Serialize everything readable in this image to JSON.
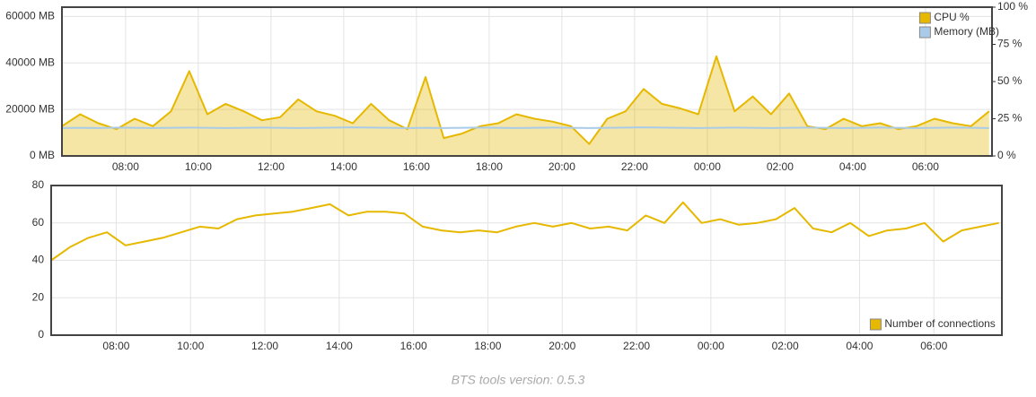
{
  "chart_data": [
    {
      "type": "line",
      "x": [
        6.25,
        6.75,
        7.25,
        7.75,
        8.25,
        8.75,
        9.25,
        9.75,
        10.25,
        10.75,
        11.25,
        11.75,
        12.25,
        12.75,
        13.25,
        13.75,
        14.25,
        14.75,
        15.25,
        15.75,
        16.25,
        16.75,
        17.25,
        17.75,
        18.25,
        18.75,
        19.25,
        19.75,
        20.25,
        20.75,
        21.25,
        21.75,
        22.25,
        22.75,
        23.25,
        23.75,
        24.25,
        24.75,
        25.25,
        25.75,
        26.25,
        26.75,
        27.25,
        27.75,
        28.25,
        28.75,
        29.25,
        29.75,
        30.25,
        30.75,
        31.25,
        31.75
      ],
      "xlim": [
        6.25,
        31.83
      ],
      "xticks": [
        {
          "value": 8,
          "label": "08:00"
        },
        {
          "value": 10,
          "label": "10:00"
        },
        {
          "value": 12,
          "label": "12:00"
        },
        {
          "value": 14,
          "label": "14:00"
        },
        {
          "value": 16,
          "label": "16:00"
        },
        {
          "value": 18,
          "label": "18:00"
        },
        {
          "value": 20,
          "label": "20:00"
        },
        {
          "value": 22,
          "label": "22:00"
        },
        {
          "value": 24,
          "label": "00:00"
        },
        {
          "value": 26,
          "label": "02:00"
        },
        {
          "value": 28,
          "label": "04:00"
        },
        {
          "value": 30,
          "label": "06:00"
        }
      ],
      "ylim": [
        0,
        64000
      ],
      "yticks": [
        {
          "value": 0,
          "label": "0 MB"
        },
        {
          "value": 20000,
          "label": "20000 MB"
        },
        {
          "value": 40000,
          "label": "40000 MB"
        },
        {
          "value": 60000,
          "label": "60000 MB"
        }
      ],
      "y2lim": [
        0,
        100
      ],
      "y2ticks": [
        {
          "value": 0,
          "label": "0 %"
        },
        {
          "value": 25,
          "label": "25 %"
        },
        {
          "value": 50,
          "label": "50 %"
        },
        {
          "value": 75,
          "label": "75 %"
        },
        {
          "value": 100,
          "label": "100 %"
        }
      ],
      "grid": true,
      "legend": "top-right",
      "series": [
        {
          "name": "CPU %",
          "color": "#e6b800",
          "axis": "y2",
          "fill": true,
          "values": [
            20,
            28,
            22,
            18,
            25,
            20,
            30,
            57,
            28,
            35,
            30,
            24,
            26,
            38,
            30,
            27,
            22,
            35,
            24,
            18,
            53,
            12,
            15,
            20,
            22,
            28,
            25,
            23,
            20,
            8,
            25,
            30,
            45,
            35,
            32,
            28,
            67,
            30,
            40,
            28,
            42,
            20,
            18,
            25,
            20,
            22,
            18,
            20,
            25,
            22,
            20,
            30
          ]
        },
        {
          "name": "Memory (MB)",
          "color": "#a9cbe8",
          "fill": false,
          "values": [
            12000,
            12100,
            12000,
            12200,
            12100,
            12000,
            12100,
            12200,
            12100,
            12000,
            12100,
            12200,
            12100,
            12000,
            12100,
            12200,
            12300,
            12200,
            12100,
            12000,
            12100,
            12000,
            12100,
            12200,
            12100,
            12000,
            12100,
            12200,
            12100,
            12000,
            12100,
            12200,
            12300,
            12200,
            12100,
            12000,
            12100,
            12200,
            12100,
            12000,
            12100,
            12200,
            12100,
            12000,
            12100,
            12200,
            12100,
            12000,
            12100,
            12200,
            12100,
            12000
          ]
        }
      ]
    },
    {
      "type": "line",
      "x": [
        6.25,
        6.75,
        7.25,
        7.75,
        8.25,
        8.75,
        9.25,
        9.75,
        10.25,
        10.75,
        11.25,
        11.75,
        12.25,
        12.75,
        13.25,
        13.75,
        14.25,
        14.75,
        15.25,
        15.75,
        16.25,
        16.75,
        17.25,
        17.75,
        18.25,
        18.75,
        19.25,
        19.75,
        20.25,
        20.75,
        21.25,
        21.75,
        22.25,
        22.75,
        23.25,
        23.75,
        24.25,
        24.75,
        25.25,
        25.75,
        26.25,
        26.75,
        27.25,
        27.75,
        28.25,
        28.75,
        29.25,
        29.75,
        30.25,
        30.75,
        31.25,
        31.75
      ],
      "xlim": [
        6.25,
        31.83
      ],
      "xticks": [
        {
          "value": 8,
          "label": "08:00"
        },
        {
          "value": 10,
          "label": "10:00"
        },
        {
          "value": 12,
          "label": "12:00"
        },
        {
          "value": 14,
          "label": "14:00"
        },
        {
          "value": 16,
          "label": "16:00"
        },
        {
          "value": 18,
          "label": "18:00"
        },
        {
          "value": 20,
          "label": "20:00"
        },
        {
          "value": 22,
          "label": "22:00"
        },
        {
          "value": 24,
          "label": "00:00"
        },
        {
          "value": 26,
          "label": "02:00"
        },
        {
          "value": 28,
          "label": "04:00"
        },
        {
          "value": 30,
          "label": "06:00"
        }
      ],
      "ylim": [
        0,
        80
      ],
      "yticks": [
        0,
        20,
        40,
        60,
        80
      ],
      "grid": true,
      "legend": "bottom-right",
      "series": [
        {
          "name": "Number of connections",
          "color": "#e6b800",
          "fill": false,
          "values": [
            40,
            47,
            52,
            55,
            48,
            50,
            52,
            55,
            58,
            57,
            62,
            64,
            65,
            66,
            68,
            70,
            64,
            66,
            66,
            65,
            58,
            56,
            55,
            56,
            55,
            58,
            60,
            58,
            60,
            57,
            58,
            56,
            64,
            60,
            71,
            60,
            62,
            59,
            60,
            62,
            68,
            57,
            55,
            60,
            53,
            56,
            57,
            60,
            50,
            56,
            58,
            60
          ]
        }
      ]
    }
  ],
  "footer": "BTS tools version: 0.5.3"
}
